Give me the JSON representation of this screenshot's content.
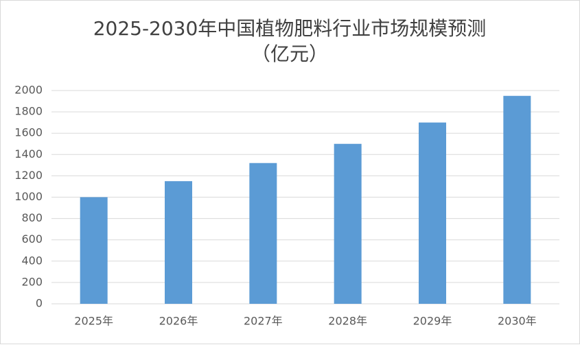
{
  "chart_data": {
    "type": "bar",
    "title": "2025-2030年中国植物肥料行业市场规模预测",
    "subtitle": "（亿元）",
    "categories": [
      "2025年",
      "2026年",
      "2027年",
      "2028年",
      "2029年",
      "2030年"
    ],
    "values": [
      1000,
      1150,
      1320,
      1500,
      1700,
      1950
    ],
    "color": "#5b9bd5",
    "ylim": [
      0,
      2000
    ],
    "yticks": [
      0,
      200,
      400,
      600,
      800,
      1000,
      1200,
      1400,
      1600,
      1800,
      2000
    ],
    "grid": true
  }
}
